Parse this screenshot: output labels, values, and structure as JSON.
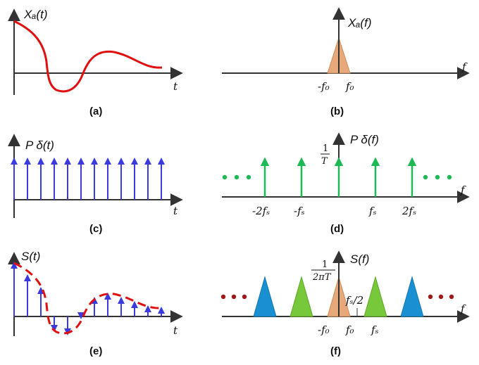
{
  "panel_a": {
    "title": "Xₐ(t)",
    "axis_var": "t",
    "caption": "(a)"
  },
  "panel_b": {
    "title": "Xₐ(f)",
    "axis_var": "f",
    "tick_neg": "-f₀",
    "tick_pos": "f₀",
    "caption": "(b)"
  },
  "panel_c": {
    "title": "P δ(t)",
    "axis_var": "t",
    "caption": "(c)"
  },
  "panel_d": {
    "title": "P δ(f)",
    "axis_var": "f",
    "height_num": "1",
    "height_den": "T",
    "ticks": [
      "-2fₛ",
      "-fₛ",
      "fₛ",
      "2fₛ"
    ],
    "caption": "(d)"
  },
  "panel_e": {
    "title": "S(t)",
    "axis_var": "t",
    "caption": "(e)"
  },
  "panel_f": {
    "title": "S(f)",
    "axis_var": "f",
    "height_num": "1",
    "height_den": "2πT",
    "half_label": "fₛ/2",
    "tick_neg": "-f₀",
    "tick_pos": "f₀",
    "tick_fs": "fₛ",
    "caption": "(f)"
  },
  "colors": {
    "signal": "#e01010",
    "impulse": "#3a3adf",
    "spectrum_impulse": "#1db954",
    "base_spectrum": "#e8a97a",
    "replica_green": "#77c83a",
    "replica_blue": "#1a8fd1",
    "dots_green": "#1db954",
    "dots_red": "#a01818",
    "axis": "#333333"
  }
}
